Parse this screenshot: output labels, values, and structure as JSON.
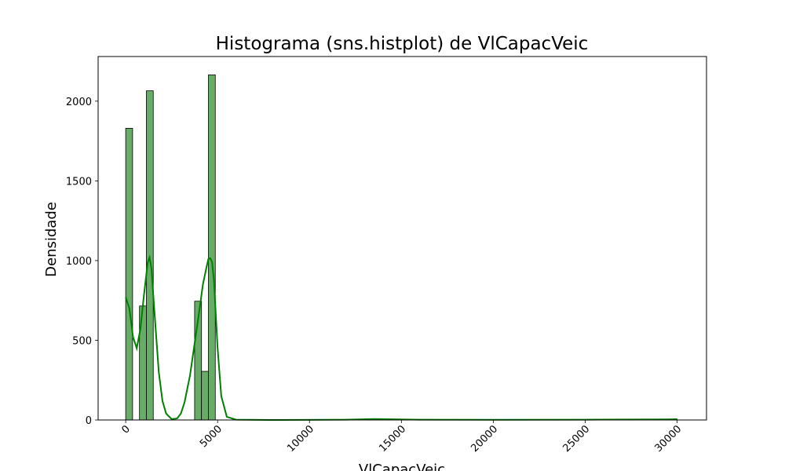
{
  "chart_data": {
    "type": "bar",
    "title": "Histograma (sns.histplot) de VlCapacVeic",
    "xlabel": "VlCapacVeic",
    "ylabel": "Densidade",
    "xlim": [
      -1500,
      31600
    ],
    "ylim": [
      0,
      2280
    ],
    "xticks": [
      0,
      5000,
      10000,
      15000,
      20000,
      25000,
      30000
    ],
    "yticks": [
      0,
      500,
      1000,
      1500,
      2000
    ],
    "bin_width": 375,
    "series": [
      {
        "bins": [
          {
            "x0": 0,
            "x1": 375,
            "count": 1830
          },
          {
            "x0": 750,
            "x1": 1125,
            "count": 715
          },
          {
            "x0": 1125,
            "x1": 1500,
            "count": 2065
          },
          {
            "x0": 3750,
            "x1": 4125,
            "count": 745
          },
          {
            "x0": 4125,
            "x1": 4500,
            "count": 305
          },
          {
            "x0": 4500,
            "x1": 4875,
            "count": 2165
          },
          {
            "x0": 13500,
            "x1": 13875,
            "count": 4
          },
          {
            "x0": 29625,
            "x1": 30000,
            "count": 5
          }
        ]
      }
    ],
    "kde": {
      "x": [
        0,
        200,
        400,
        600,
        800,
        1000,
        1200,
        1300,
        1400,
        1600,
        1800,
        2000,
        2200,
        2500,
        2800,
        3000,
        3200,
        3500,
        3800,
        4000,
        4200,
        4400,
        4500,
        4600,
        4700,
        4800,
        5000,
        5200,
        5500,
        6000,
        8000,
        12000,
        13500,
        16000,
        20000,
        25000,
        29500,
        30000
      ],
      "y": [
        770,
        700,
        520,
        450,
        570,
        790,
        990,
        1020,
        950,
        620,
        300,
        120,
        40,
        5,
        10,
        40,
        110,
        280,
        520,
        680,
        850,
        960,
        1010,
        1015,
        990,
        880,
        450,
        150,
        20,
        2,
        0,
        2,
        6,
        2,
        1,
        2,
        4,
        5
      ]
    },
    "bar_color": "#67ad67",
    "edge_color": "#000000",
    "kde_color": "#008000",
    "grid": false,
    "legend": false
  }
}
